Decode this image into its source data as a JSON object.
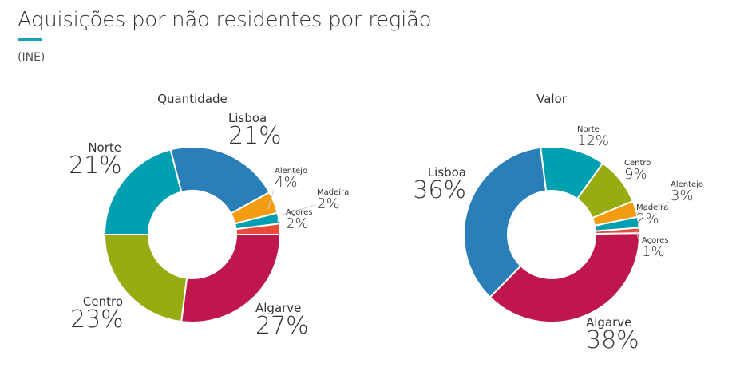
{
  "title": "Aquisições por não residentes por região",
  "source": "(INE)",
  "colors": {
    "accent": "#17a2b8"
  },
  "chart_data": [
    {
      "type": "pie",
      "donut": true,
      "title": "Quantidade",
      "slices": [
        {
          "label": "Lisboa",
          "value": 21,
          "display": "21%",
          "color": "#2a7fb8"
        },
        {
          "label": "Alentejo",
          "value": 4,
          "display": "4%",
          "color": "#f39c12"
        },
        {
          "label": "Madeira",
          "value": 2,
          "display": "2%",
          "color": "#00a0b0"
        },
        {
          "label": "Açores",
          "value": 2,
          "display": "2%",
          "color": "#e74c3c"
        },
        {
          "label": "Algarve",
          "value": 27,
          "display": "27%",
          "color": "#c0164e"
        },
        {
          "label": "Centro",
          "value": 23,
          "display": "23%",
          "color": "#97ab12"
        },
        {
          "label": "Norte",
          "value": 21,
          "display": "21%",
          "color": "#00a0b0"
        }
      ]
    },
    {
      "type": "pie",
      "donut": true,
      "title": "Valor",
      "slices": [
        {
          "label": "Norte",
          "value": 12,
          "display": "12%",
          "color": "#00a0b0"
        },
        {
          "label": "Centro",
          "value": 9,
          "display": "9%",
          "color": "#97ab12"
        },
        {
          "label": "Alentejo",
          "value": 3,
          "display": "3%",
          "color": "#f39c12"
        },
        {
          "label": "Madeira",
          "value": 2,
          "display": "2%",
          "color": "#00a0b0"
        },
        {
          "label": "Açores",
          "value": 1,
          "display": "1%",
          "color": "#e74c3c"
        },
        {
          "label": "Algarve",
          "value": 38,
          "display": "38%",
          "color": "#c0164e"
        },
        {
          "label": "Lisboa",
          "value": 36,
          "display": "36%",
          "color": "#2a7fb8"
        }
      ]
    }
  ]
}
